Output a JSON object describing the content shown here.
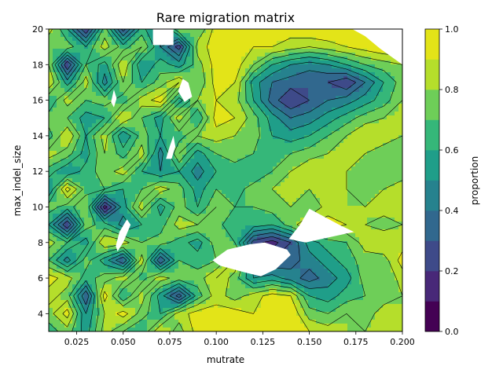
{
  "chart_data": {
    "type": "heatmap",
    "subtype": "filled-contour",
    "title": "Rare migration matrix",
    "xlabel": "mutrate",
    "ylabel": "max_indel_size",
    "xlim": [
      0.01,
      0.2
    ],
    "ylim": [
      3,
      20
    ],
    "x_ticks": [
      "0.025",
      "0.050",
      "0.075",
      "0.100",
      "0.125",
      "0.150",
      "0.175",
      "0.200"
    ],
    "y_ticks": [
      "4",
      "6",
      "8",
      "10",
      "12",
      "14",
      "16",
      "18",
      "20"
    ],
    "colorbar": {
      "label": "proportion",
      "ticks": [
        "0.0",
        "0.2",
        "0.4",
        "0.6",
        "0.8",
        "1.0"
      ],
      "levels": [
        0.0,
        0.1,
        0.2,
        0.3,
        0.4,
        0.5,
        0.6,
        0.7,
        0.8,
        0.9,
        1.0
      ],
      "colors": [
        "#440154",
        "#482878",
        "#3e4a89",
        "#31688e",
        "#26828e",
        "#1f9e89",
        "#35b779",
        "#6ece58",
        "#b5de2b",
        "#e3e418"
      ]
    },
    "grid": false,
    "x": [
      0.01,
      0.02,
      0.03,
      0.04,
      0.05,
      0.06,
      0.07,
      0.08,
      0.09,
      0.1,
      0.11,
      0.12,
      0.13,
      0.14,
      0.15,
      0.16,
      0.17,
      0.18,
      0.19,
      0.2
    ],
    "y": [
      3,
      4,
      5,
      6,
      7,
      8,
      9,
      10,
      11,
      12,
      13,
      14,
      15,
      16,
      17,
      18,
      19,
      20
    ],
    "z": [
      [
        0.65,
        0.75,
        0.55,
        0.85,
        0.7,
        0.6,
        0.9,
        0.75,
        0.95,
        0.95,
        0.95,
        0.95,
        0.95,
        1.0,
        0.9,
        0.85,
        0.8,
        0.8,
        0.85,
        0.8
      ],
      [
        0.75,
        0.95,
        0.5,
        0.8,
        0.95,
        0.75,
        0.6,
        0.85,
        0.95,
        0.95,
        0.95,
        0.9,
        0.95,
        1.0,
        0.75,
        0.7,
        0.8,
        0.75,
        0.85,
        0.8
      ],
      [
        0.85,
        0.75,
        0.3,
        0.95,
        0.6,
        0.85,
        0.55,
        0.25,
        0.65,
        0.85,
        0.75,
        0.85,
        0.95,
        0.9,
        0.6,
        0.55,
        0.65,
        0.7,
        0.75,
        0.8
      ],
      [
        0.95,
        0.85,
        0.65,
        0.75,
        0.85,
        0.65,
        0.85,
        0.75,
        0.75,
        0.9,
        0.75,
        0.5,
        0.55,
        0.45,
        0.35,
        0.45,
        0.55,
        0.75,
        0.7,
        0.85
      ],
      [
        0.7,
        0.45,
        0.75,
        0.55,
        0.3,
        0.85,
        0.3,
        0.7,
        0.65,
        0.7,
        0.9,
        0.45,
        0.3,
        0.35,
        0.45,
        0.55,
        0.65,
        0.75,
        0.75,
        0.95
      ],
      [
        0.85,
        0.7,
        0.55,
        0.9,
        0.85,
        0.7,
        0.75,
        0.65,
        0.55,
        0.75,
        0.7,
        0.25,
        0.15,
        0.3,
        0.55,
        0.65,
        0.7,
        0.85,
        0.9,
        0.85
      ],
      [
        0.6,
        0.2,
        0.75,
        0.65,
        0.45,
        0.6,
        0.65,
        0.85,
        0.8,
        0.75,
        0.6,
        0.65,
        0.6,
        0.75,
        0.9,
        0.95,
        0.9,
        0.8,
        0.75,
        0.8
      ],
      [
        0.75,
        0.65,
        0.8,
        0.15,
        0.55,
        0.85,
        0.55,
        0.75,
        0.6,
        0.8,
        0.7,
        0.7,
        0.75,
        0.8,
        0.7,
        0.85,
        0.8,
        0.8,
        0.85,
        0.85
      ],
      [
        0.5,
        0.95,
        0.65,
        0.7,
        0.6,
        0.7,
        0.85,
        0.75,
        0.55,
        0.7,
        0.65,
        0.75,
        0.8,
        0.85,
        0.8,
        0.85,
        0.8,
        0.75,
        0.8,
        0.85
      ],
      [
        0.65,
        0.5,
        0.65,
        0.75,
        0.85,
        0.6,
        0.5,
        0.6,
        0.45,
        0.6,
        0.65,
        0.6,
        0.7,
        0.8,
        0.9,
        0.85,
        0.8,
        0.75,
        0.7,
        0.75
      ],
      [
        0.85,
        0.75,
        0.55,
        0.8,
        0.65,
        0.85,
        0.45,
        0.8,
        0.55,
        0.7,
        0.75,
        0.7,
        0.65,
        0.7,
        0.75,
        0.8,
        0.85,
        0.8,
        0.75,
        0.7
      ],
      [
        0.65,
        0.9,
        0.6,
        0.85,
        0.5,
        0.75,
        0.6,
        0.65,
        0.8,
        0.85,
        0.8,
        0.75,
        0.6,
        0.55,
        0.6,
        0.7,
        0.8,
        0.9,
        0.85,
        0.8
      ],
      [
        0.75,
        0.7,
        0.55,
        0.6,
        0.9,
        0.7,
        0.55,
        0.85,
        0.6,
        0.95,
        0.9,
        0.75,
        0.55,
        0.4,
        0.45,
        0.55,
        0.65,
        0.75,
        0.8,
        0.85
      ],
      [
        0.6,
        0.85,
        0.7,
        0.75,
        0.65,
        0.85,
        0.95,
        0.55,
        0.8,
        0.9,
        0.85,
        0.6,
        0.35,
        0.2,
        0.3,
        0.4,
        0.45,
        0.55,
        0.65,
        0.8
      ],
      [
        0.9,
        0.55,
        0.85,
        0.45,
        0.8,
        0.6,
        0.75,
        0.9,
        0.7,
        0.95,
        0.9,
        0.55,
        0.4,
        0.35,
        0.3,
        0.3,
        0.2,
        0.4,
        0.6,
        0.75
      ],
      [
        0.8,
        0.2,
        0.7,
        0.55,
        0.9,
        0.5,
        0.65,
        0.55,
        0.75,
        0.95,
        0.95,
        0.8,
        0.6,
        0.5,
        0.45,
        0.5,
        0.6,
        0.7,
        0.75,
        0.8
      ],
      [
        0.7,
        0.75,
        0.6,
        0.85,
        0.65,
        0.8,
        0.5,
        0.25,
        0.85,
        0.95,
        0.95,
        0.9,
        0.9,
        0.85,
        0.8,
        0.85,
        0.9,
        0.95,
        1.0,
        1.0
      ],
      [
        0.85,
        0.6,
        0.2,
        0.75,
        0.25,
        0.65,
        0.4,
        0.8,
        0.7,
        0.95,
        0.95,
        0.95,
        0.95,
        0.95,
        1.0,
        1.0,
        1.0,
        1.0,
        1.0,
        1.0
      ]
    ],
    "missing_regions": [
      [
        [
          0.098,
          7.0
        ],
        [
          0.106,
          7.6
        ],
        [
          0.118,
          7.9
        ],
        [
          0.126,
          8.0
        ],
        [
          0.138,
          7.6
        ],
        [
          0.14,
          7.3
        ],
        [
          0.132,
          6.5
        ],
        [
          0.124,
          6.1
        ],
        [
          0.116,
          6.3
        ],
        [
          0.102,
          6.7
        ]
      ],
      [
        [
          0.139,
          8.2
        ],
        [
          0.145,
          9.0
        ],
        [
          0.15,
          9.9
        ],
        [
          0.166,
          9.0
        ],
        [
          0.174,
          8.6
        ],
        [
          0.148,
          8.0
        ]
      ],
      [
        [
          0.173,
          20.0
        ],
        [
          0.2,
          20.0
        ],
        [
          0.2,
          18.0
        ],
        [
          0.188,
          18.9
        ],
        [
          0.18,
          19.6
        ]
      ],
      [
        [
          0.066,
          19.1
        ],
        [
          0.066,
          20.0
        ],
        [
          0.077,
          20.0
        ],
        [
          0.077,
          19.1
        ]
      ],
      [
        [
          0.047,
          7.5
        ],
        [
          0.05,
          8.0
        ],
        [
          0.054,
          9.0
        ],
        [
          0.052,
          9.3
        ],
        [
          0.048,
          8.6
        ],
        [
          0.046,
          7.8
        ]
      ],
      [
        [
          0.073,
          12.7
        ],
        [
          0.075,
          13.4
        ],
        [
          0.077,
          14.0
        ],
        [
          0.078,
          13.4
        ],
        [
          0.076,
          12.7
        ]
      ],
      [
        [
          0.0795,
          16.5
        ],
        [
          0.082,
          17.2
        ],
        [
          0.085,
          17.0
        ],
        [
          0.087,
          16.2
        ],
        [
          0.083,
          15.9
        ]
      ],
      [
        [
          0.0435,
          15.9
        ],
        [
          0.045,
          16.6
        ],
        [
          0.0465,
          16.1
        ],
        [
          0.045,
          15.6
        ]
      ]
    ]
  }
}
